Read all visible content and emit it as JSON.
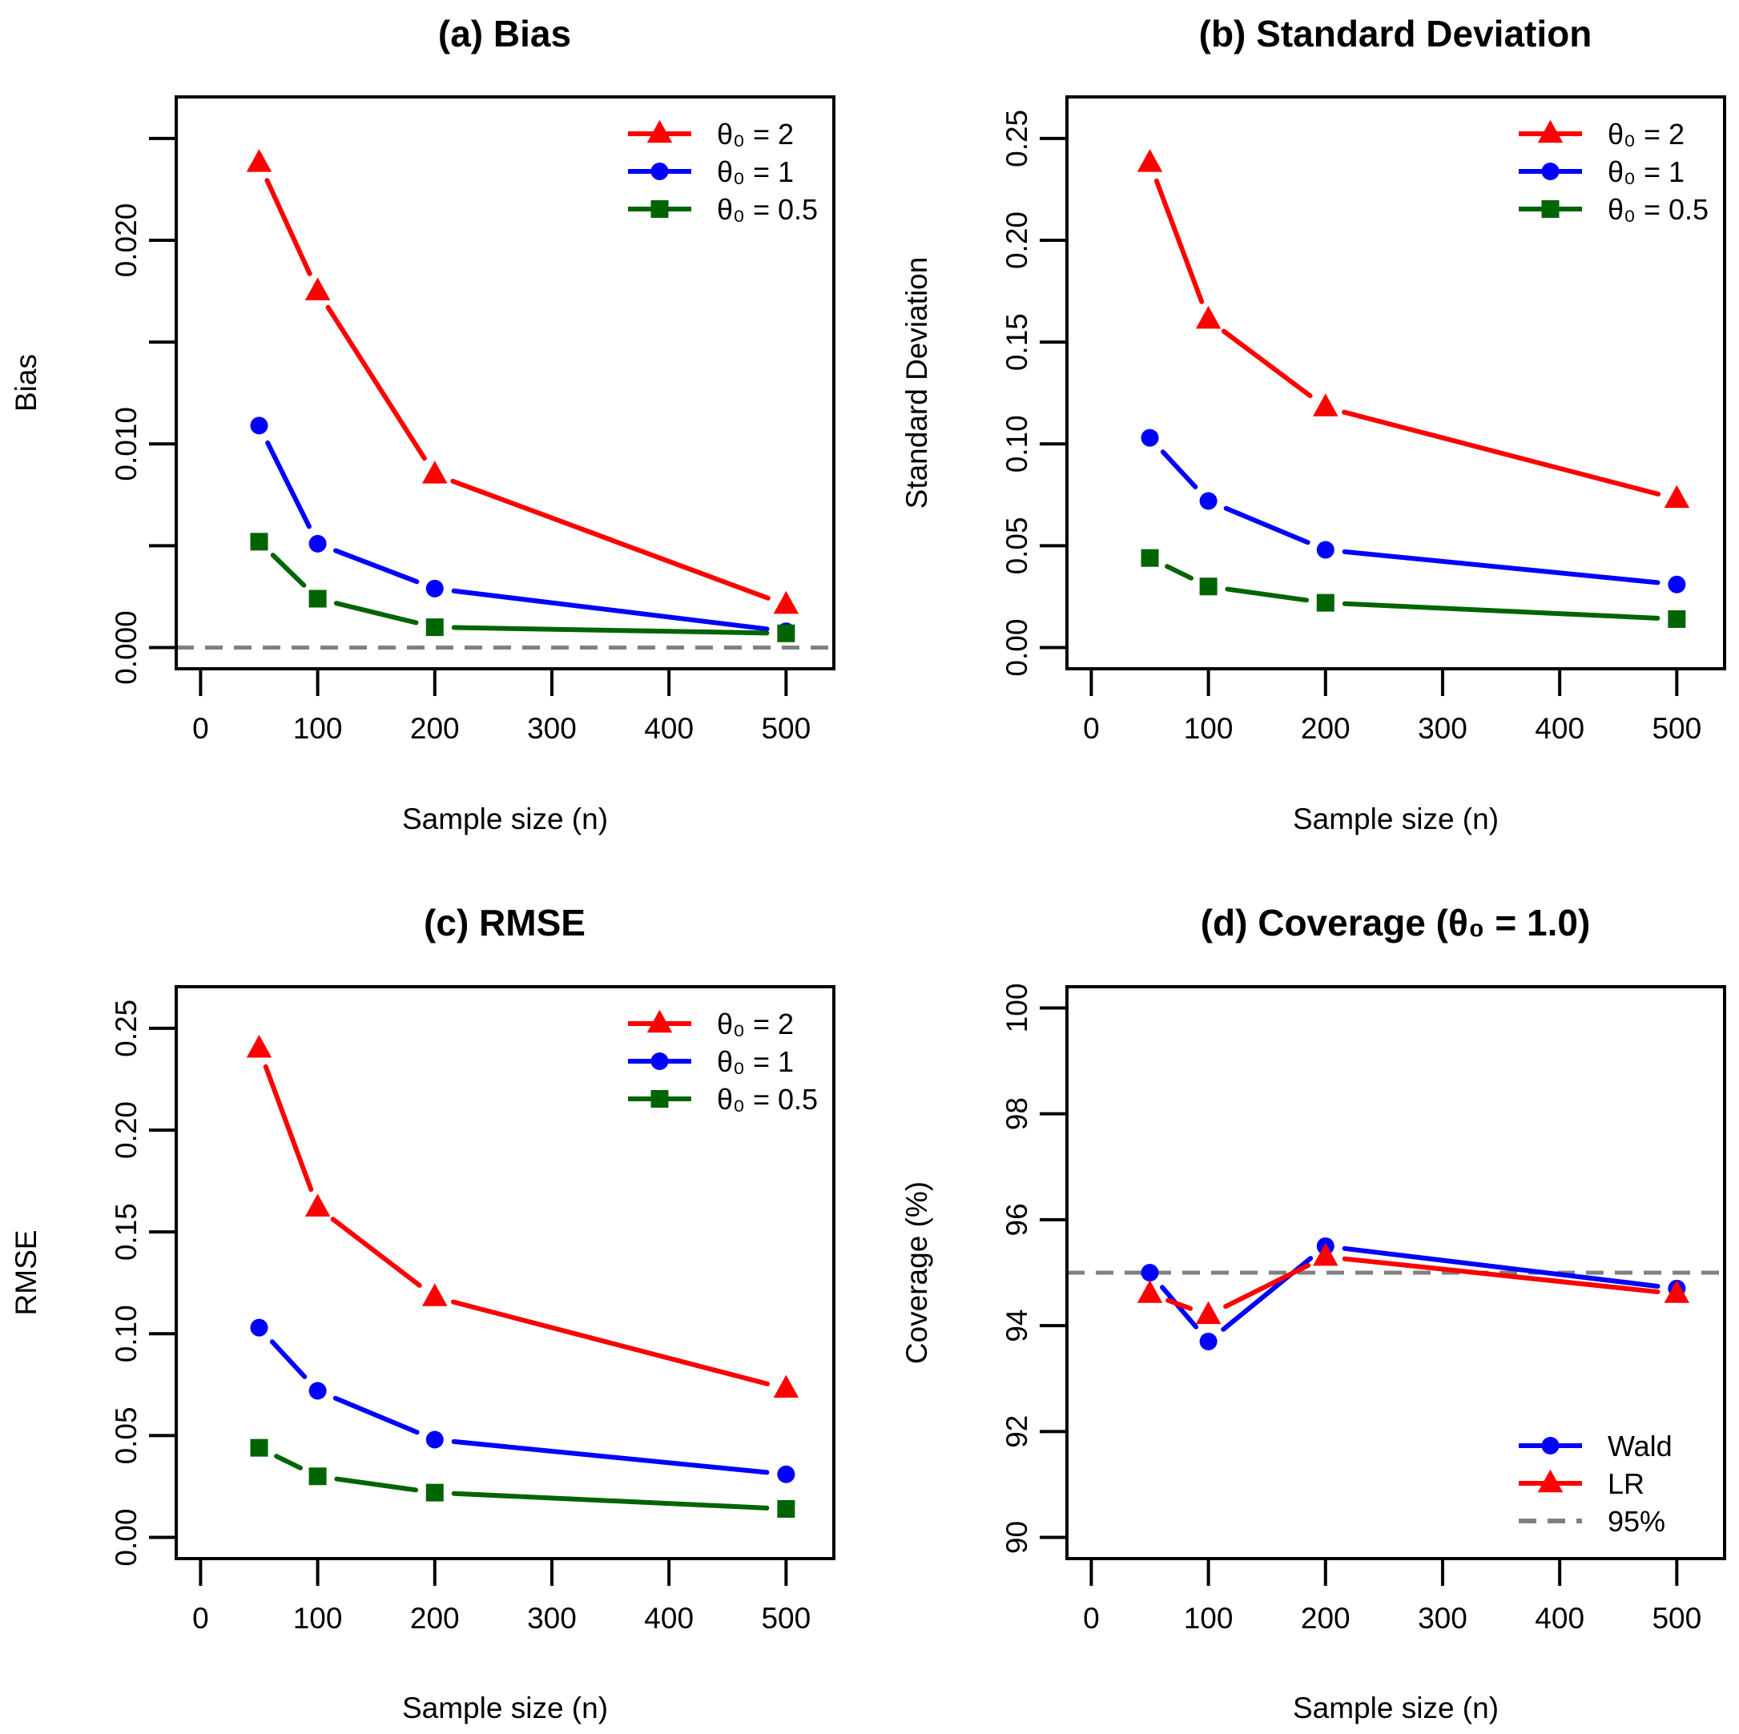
{
  "colors": {
    "red": "#ff0000",
    "blue": "#0000ff",
    "green": "#006400",
    "ref": "#808080"
  },
  "chart_data": [
    {
      "type": "line",
      "title": "(a) Bias",
      "xlabel": "Sample size (n)",
      "ylabel": "Bias",
      "x": [
        50,
        100,
        200,
        500
      ],
      "xlim": [
        0,
        520
      ],
      "xticks": [
        0,
        100,
        200,
        300,
        400,
        500
      ],
      "xtick_labels": [
        "0",
        "100",
        "200",
        "300",
        "400",
        "500"
      ],
      "ylim": [
        0,
        0.026
      ],
      "yticks": [
        0,
        0.005,
        0.01,
        0.015,
        0.02,
        0.025
      ],
      "ytick_labels": [
        "0.000",
        "",
        "0.010",
        "",
        "0.020",
        ""
      ],
      "reference_line": 0,
      "legend_position": "top-right",
      "series": [
        {
          "name": "θ₀ = 2",
          "color": "red",
          "marker": "triangle",
          "values": [
            0.0238,
            0.0175,
            0.0085,
            0.0021
          ]
        },
        {
          "name": "θ₀ = 1",
          "color": "blue",
          "marker": "circle",
          "values": [
            0.0109,
            0.0051,
            0.0029,
            0.0008
          ]
        },
        {
          "name": "θ₀ = 0.5",
          "color": "green",
          "marker": "square",
          "values": [
            0.0052,
            0.0024,
            0.001,
            0.0007
          ]
        }
      ]
    },
    {
      "type": "line",
      "title": "(b) Standard Deviation",
      "xlabel": "Sample size (n)",
      "ylabel": "Standard Deviation",
      "x": [
        50,
        100,
        200,
        500
      ],
      "xlim": [
        0,
        520
      ],
      "xticks": [
        0,
        100,
        200,
        300,
        400,
        500
      ],
      "xtick_labels": [
        "0",
        "100",
        "200",
        "300",
        "400",
        "500"
      ],
      "ylim": [
        0,
        0.26
      ],
      "yticks": [
        0,
        0.05,
        0.1,
        0.15,
        0.2,
        0.25
      ],
      "ytick_labels": [
        "0.00",
        "0.05",
        "0.10",
        "0.15",
        "0.20",
        "0.25"
      ],
      "legend_position": "top-right",
      "series": [
        {
          "name": "θ₀ = 2",
          "color": "red",
          "marker": "triangle",
          "values": [
            0.238,
            0.161,
            0.118,
            0.073
          ]
        },
        {
          "name": "θ₀ = 1",
          "color": "blue",
          "marker": "circle",
          "values": [
            0.103,
            0.072,
            0.048,
            0.031
          ]
        },
        {
          "name": "θ₀ = 0.5",
          "color": "green",
          "marker": "square",
          "values": [
            0.044,
            0.03,
            0.022,
            0.014
          ]
        }
      ]
    },
    {
      "type": "line",
      "title": "(c) RMSE",
      "xlabel": "Sample size (n)",
      "ylabel": "RMSE",
      "x": [
        50,
        100,
        200,
        500
      ],
      "xlim": [
        0,
        520
      ],
      "xticks": [
        0,
        100,
        200,
        300,
        400,
        500
      ],
      "xtick_labels": [
        "0",
        "100",
        "200",
        "300",
        "400",
        "500"
      ],
      "ylim": [
        0,
        0.26
      ],
      "yticks": [
        0,
        0.05,
        0.1,
        0.15,
        0.2,
        0.25
      ],
      "ytick_labels": [
        "0.00",
        "0.05",
        "0.10",
        "0.15",
        "0.20",
        "0.25"
      ],
      "legend_position": "top-right",
      "series": [
        {
          "name": "θ₀ = 2",
          "color": "red",
          "marker": "triangle",
          "values": [
            0.24,
            0.162,
            0.118,
            0.073
          ]
        },
        {
          "name": "θ₀ = 1",
          "color": "blue",
          "marker": "circle",
          "values": [
            0.103,
            0.072,
            0.048,
            0.031
          ]
        },
        {
          "name": "θ₀ = 0.5",
          "color": "green",
          "marker": "square",
          "values": [
            0.044,
            0.03,
            0.022,
            0.014
          ]
        }
      ]
    },
    {
      "type": "line",
      "title": "(d) Coverage (θ₀ = 1.0)",
      "xlabel": "Sample size (n)",
      "ylabel": "Coverage (%)",
      "x": [
        50,
        100,
        200,
        500
      ],
      "xlim": [
        0,
        520
      ],
      "xticks": [
        0,
        100,
        200,
        300,
        400,
        500
      ],
      "xtick_labels": [
        "0",
        "100",
        "200",
        "300",
        "400",
        "500"
      ],
      "ylim": [
        90,
        100
      ],
      "yticks": [
        90,
        92,
        94,
        96,
        98,
        100
      ],
      "ytick_labels": [
        "90",
        "92",
        "94",
        "96",
        "98",
        "100"
      ],
      "reference_line": 95,
      "reference_label": "95%",
      "legend_position": "bottom-right",
      "series": [
        {
          "name": "Wald",
          "color": "blue",
          "marker": "circle",
          "values": [
            95.0,
            93.7,
            95.5,
            94.7
          ]
        },
        {
          "name": "LR",
          "color": "red",
          "marker": "triangle",
          "values": [
            94.6,
            94.2,
            95.3,
            94.6
          ]
        }
      ]
    }
  ]
}
